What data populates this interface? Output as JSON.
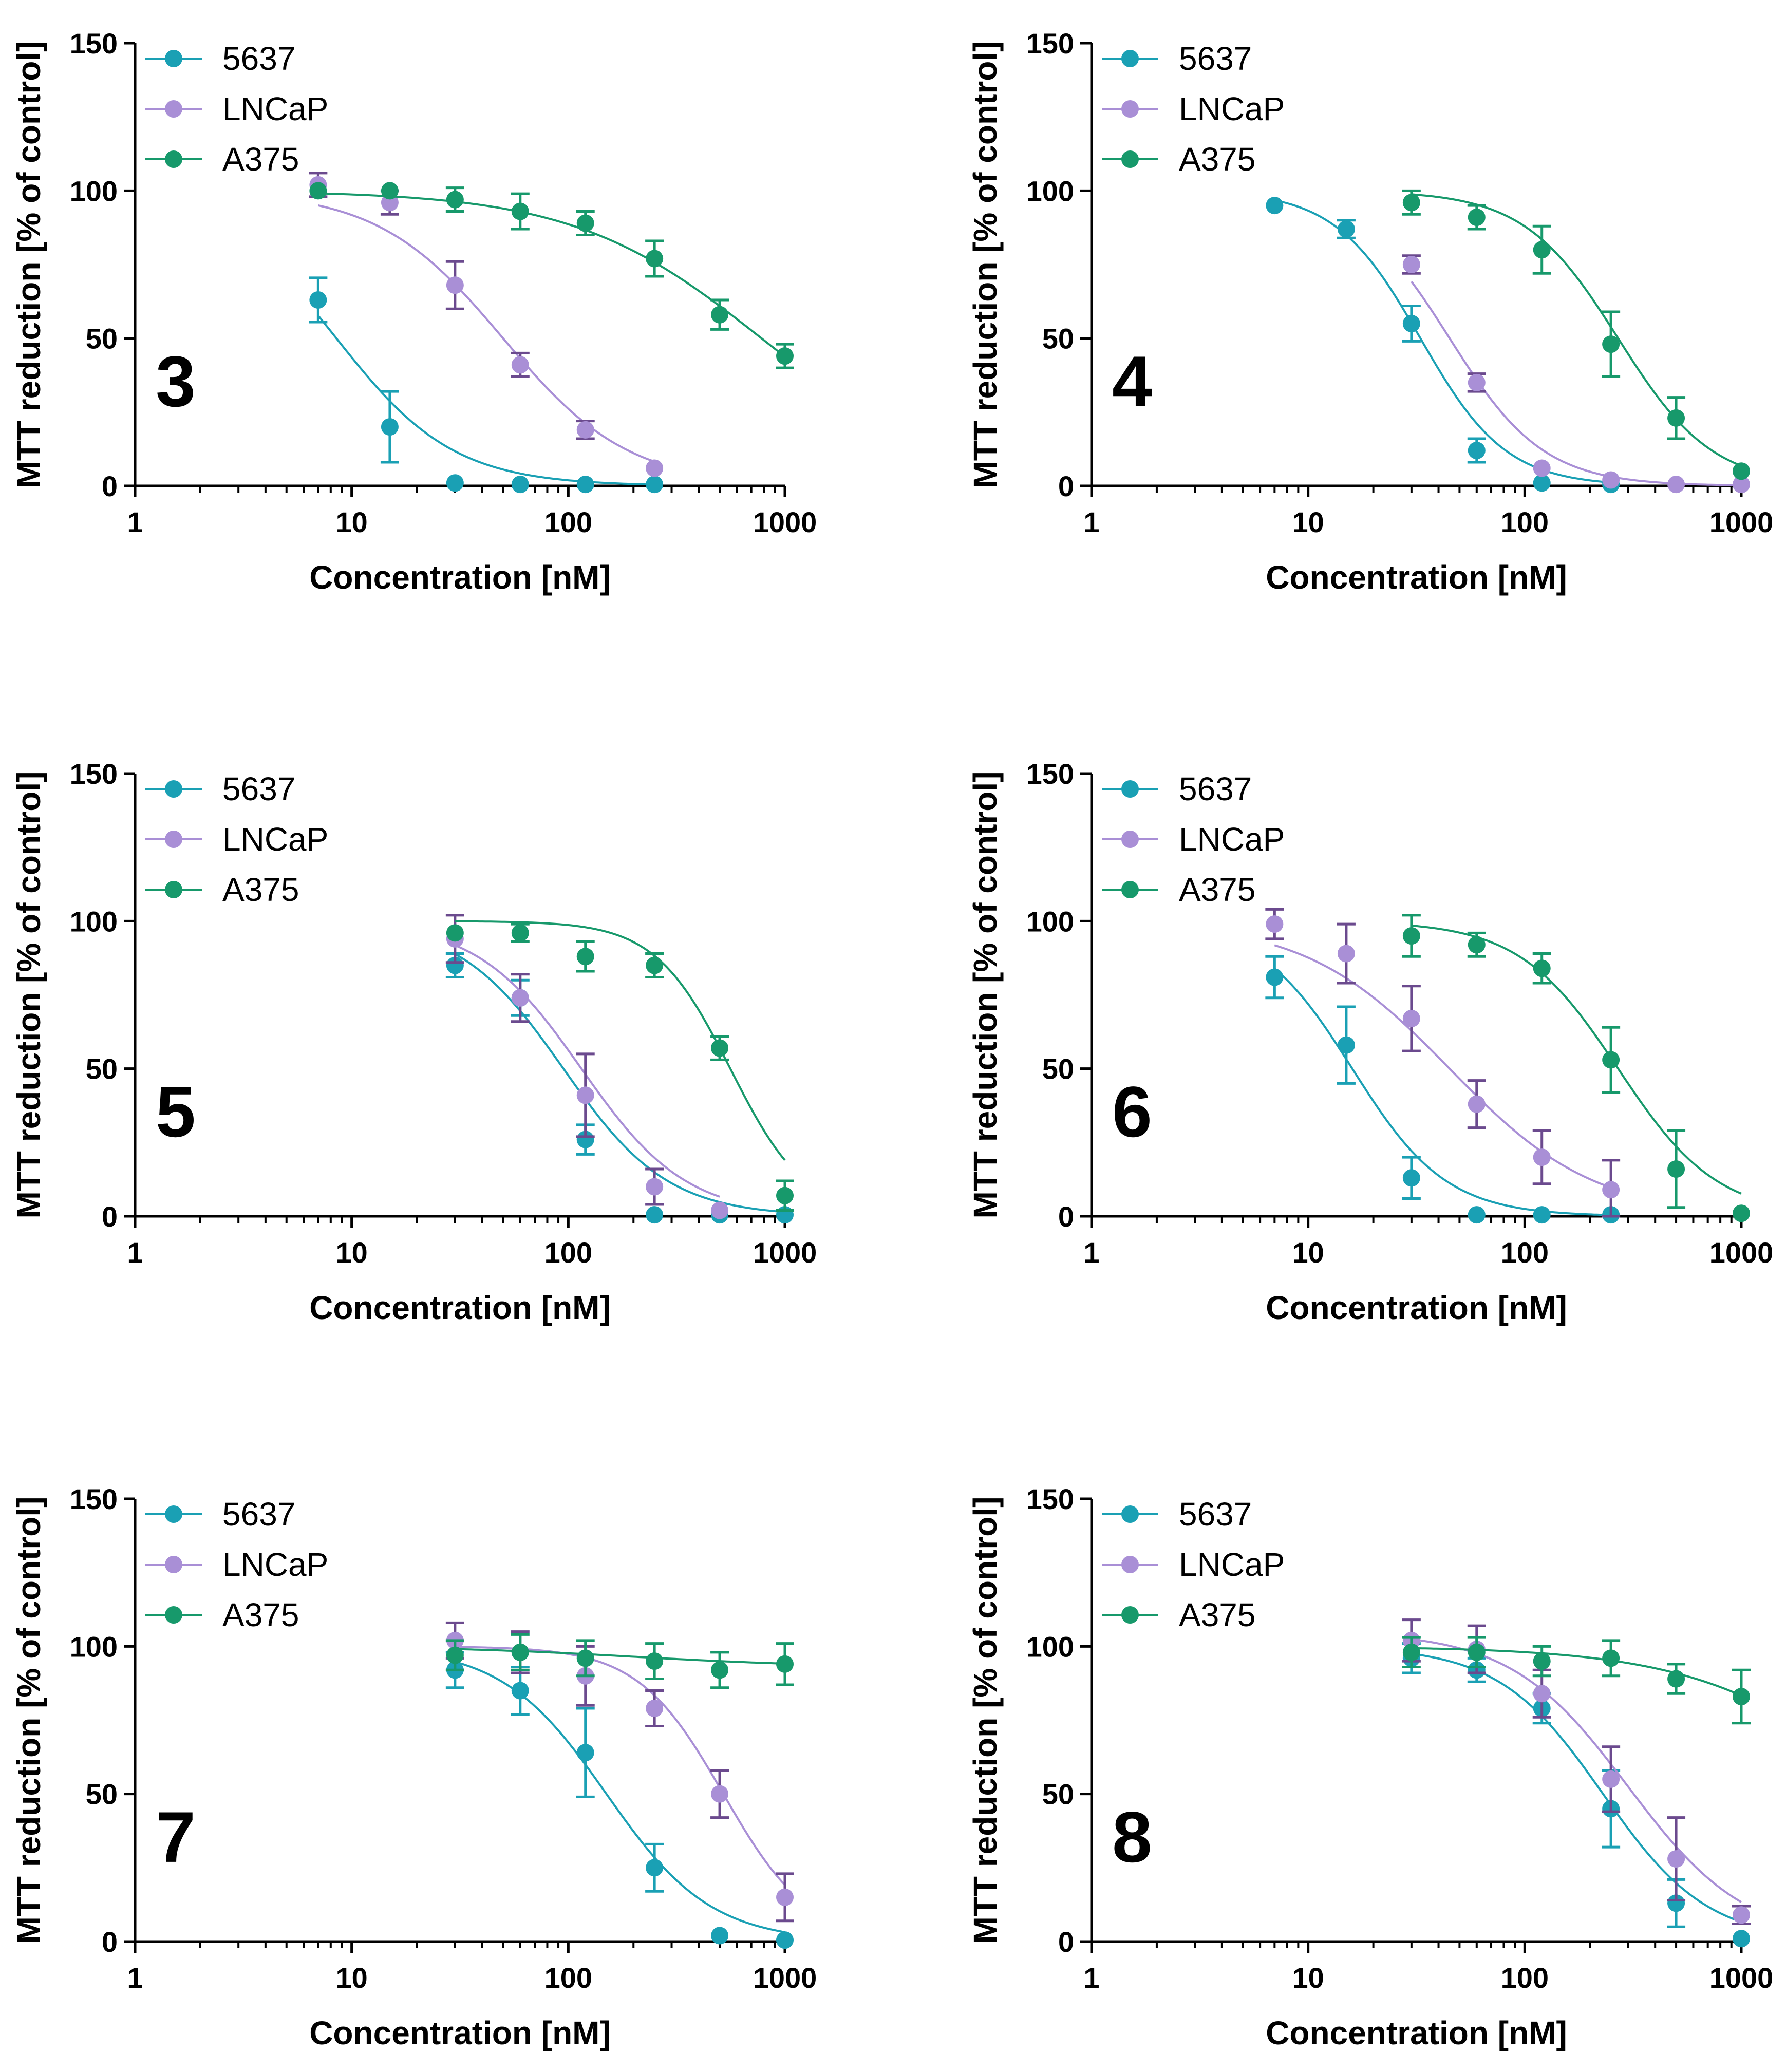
{
  "colors": {
    "5637": "#1aa0b4",
    "LNCaP": "#a98fd6",
    "LNCaP_err": "#6b4a8e",
    "A375": "#17996b"
  },
  "chart_data": [
    {
      "type": "scatter",
      "panel_label": "3",
      "xlabel": "Concentration [nM]",
      "ylabel": "MTT reduction [% of control]",
      "xscale": "log",
      "xlim": [
        1,
        1000
      ],
      "ylim": [
        0,
        150
      ],
      "xticks": [
        "1",
        "10",
        "100",
        "1000"
      ],
      "yticks": [
        "0",
        "50",
        "100",
        "150"
      ],
      "legend": [
        "5637",
        "LNCaP",
        "A375"
      ],
      "series": [
        {
          "name": "5637",
          "x": [
            7,
            15,
            30,
            60,
            120,
            250
          ],
          "y": [
            63,
            20,
            1,
            0.5,
            0.5,
            0.5
          ],
          "err": [
            7.5,
            12,
            0,
            0,
            0,
            0
          ],
          "fit": {
            "bottom": 0,
            "top": 100,
            "ic50": 8.5,
            "hill": 1.6
          }
        },
        {
          "name": "LNCaP",
          "x": [
            7,
            15,
            30,
            60,
            120,
            250
          ],
          "y": [
            102,
            96,
            68,
            41,
            19,
            6
          ],
          "err": [
            4,
            4,
            8,
            4,
            3,
            0
          ],
          "fit": {
            "bottom": 0,
            "top": 100,
            "ic50": 50,
            "hill": 1.5
          }
        },
        {
          "name": "A375",
          "x": [
            7,
            15,
            30,
            60,
            120,
            250,
            500,
            1000
          ],
          "y": [
            100,
            100,
            97,
            93,
            89,
            77,
            58,
            44
          ],
          "err": [
            0,
            0,
            4,
            6,
            4,
            6,
            5,
            4
          ],
          "fit": {
            "bottom": 0,
            "top": 100,
            "ic50": 780,
            "hill": 1
          }
        }
      ]
    },
    {
      "type": "scatter",
      "panel_label": "4",
      "xlabel": "Concentration [nM]",
      "ylabel": "MTT reduction [% of control]",
      "xscale": "log",
      "xlim": [
        1,
        1000
      ],
      "ylim": [
        0,
        150
      ],
      "xticks": [
        "1",
        "10",
        "100",
        "1000"
      ],
      "yticks": [
        "0",
        "50",
        "100",
        "150"
      ],
      "legend": [
        "5637",
        "LNCaP",
        "A375"
      ],
      "series": [
        {
          "name": "5637",
          "x": [
            7,
            15,
            30,
            60,
            120,
            250
          ],
          "y": [
            95,
            87,
            55,
            12,
            1,
            0.5
          ],
          "err": [
            0,
            3,
            6,
            4,
            0,
            0
          ],
          "fit": {
            "bottom": 0,
            "top": 100,
            "ic50": 33,
            "hill": 2.2
          }
        },
        {
          "name": "LNCaP",
          "x": [
            30,
            60,
            120,
            250,
            500,
            1000
          ],
          "y": [
            75,
            35,
            6,
            2,
            0.5,
            0.5
          ],
          "err": [
            3,
            3,
            0,
            0,
            0,
            0
          ],
          "fit": {
            "bottom": 0,
            "top": 100,
            "ic50": 45,
            "hill": 2
          }
        },
        {
          "name": "A375",
          "x": [
            30,
            60,
            120,
            250,
            500,
            1000
          ],
          "y": [
            96,
            91,
            80,
            48,
            23,
            5
          ],
          "err": [
            4,
            4,
            8,
            11,
            7,
            0
          ],
          "fit": {
            "bottom": 0,
            "top": 100,
            "ic50": 270,
            "hill": 2
          }
        }
      ]
    },
    {
      "type": "scatter",
      "panel_label": "5",
      "xlabel": "Concentration [nM]",
      "ylabel": "MTT reduction [% of control]",
      "xscale": "log",
      "xlim": [
        1,
        1000
      ],
      "ylim": [
        0,
        150
      ],
      "xticks": [
        "1",
        "10",
        "100",
        "1000"
      ],
      "yticks": [
        "0",
        "50",
        "100",
        "150"
      ],
      "legend": [
        "5637",
        "LNCaP",
        "A375"
      ],
      "series": [
        {
          "name": "5637",
          "x": [
            30,
            60,
            120,
            250,
            500,
            1000
          ],
          "y": [
            85,
            74,
            26,
            0.5,
            0.5,
            0.5
          ],
          "err": [
            4,
            6,
            5,
            0,
            0,
            0
          ],
          "fit": {
            "bottom": 0,
            "top": 100,
            "ic50": 95,
            "hill": 1.8
          }
        },
        {
          "name": "LNCaP",
          "x": [
            30,
            60,
            120,
            250,
            500
          ],
          "y": [
            94,
            74,
            41,
            10,
            2
          ],
          "err": [
            8,
            8,
            14,
            6,
            0
          ],
          "fit": {
            "bottom": 0,
            "top": 100,
            "ic50": 115,
            "hill": 1.8
          }
        },
        {
          "name": "A375",
          "x": [
            30,
            60,
            120,
            250,
            500,
            1000
          ],
          "y": [
            96,
            96,
            88,
            85,
            57,
            7
          ],
          "err": [
            0,
            3,
            5,
            4,
            4,
            5
          ],
          "fit": {
            "bottom": 0,
            "top": 100,
            "ic50": 560,
            "hill": 2.5
          }
        }
      ]
    },
    {
      "type": "scatter",
      "panel_label": "6",
      "xlabel": "Concentration [nM]",
      "ylabel": "MTT reduction [% of control]",
      "xscale": "log",
      "xlim": [
        1,
        1000
      ],
      "ylim": [
        0,
        150
      ],
      "xticks": [
        "1",
        "10",
        "100",
        "1000"
      ],
      "yticks": [
        "0",
        "50",
        "100",
        "150"
      ],
      "legend": [
        "5637",
        "LNCaP",
        "A375"
      ],
      "series": [
        {
          "name": "5637",
          "x": [
            7,
            15,
            30,
            60,
            120,
            250
          ],
          "y": [
            81,
            58,
            13,
            0.5,
            0.5,
            0.5
          ],
          "err": [
            7,
            13,
            7,
            0,
            0,
            0
          ],
          "fit": {
            "bottom": 0,
            "top": 100,
            "ic50": 16,
            "hill": 2
          }
        },
        {
          "name": "LNCaP",
          "x": [
            7,
            15,
            30,
            60,
            120,
            250
          ],
          "y": [
            99,
            89,
            67,
            38,
            20,
            9
          ],
          "err": [
            5,
            10,
            11,
            8,
            9,
            10
          ],
          "fit": {
            "bottom": 0,
            "top": 100,
            "ic50": 45,
            "hill": 1.3
          }
        },
        {
          "name": "A375",
          "x": [
            30,
            60,
            120,
            250,
            500,
            1000
          ],
          "y": [
            95,
            92,
            84,
            53,
            16,
            1
          ],
          "err": [
            7,
            4,
            5,
            11,
            13,
            0
          ],
          "fit": {
            "bottom": 0,
            "top": 100,
            "ic50": 270,
            "hill": 1.9
          }
        }
      ]
    },
    {
      "type": "scatter",
      "panel_label": "7",
      "xlabel": "Concentration [nM]",
      "ylabel": "MTT reduction [% of control]",
      "xscale": "log",
      "xlim": [
        1,
        1000
      ],
      "ylim": [
        0,
        150
      ],
      "xticks": [
        "1",
        "10",
        "100",
        "1000"
      ],
      "yticks": [
        "0",
        "50",
        "100",
        "150"
      ],
      "legend": [
        "5637",
        "LNCaP",
        "A375"
      ],
      "series": [
        {
          "name": "5637",
          "x": [
            30,
            60,
            120,
            250,
            500,
            1000
          ],
          "y": [
            92,
            85,
            64,
            25,
            2,
            0.5
          ],
          "err": [
            6,
            8,
            15,
            8,
            0,
            0
          ],
          "fit": {
            "bottom": 0,
            "top": 100,
            "ic50": 150,
            "hill": 1.8
          }
        },
        {
          "name": "LNCaP",
          "x": [
            30,
            60,
            120,
            250,
            500,
            1000
          ],
          "y": [
            102,
            98,
            90,
            79,
            50,
            15
          ],
          "err": [
            6,
            7,
            10,
            6,
            8,
            8
          ],
          "fit": {
            "bottom": 0,
            "top": 100,
            "ic50": 520,
            "hill": 2.2
          }
        },
        {
          "name": "A375",
          "x": [
            30,
            60,
            120,
            250,
            500,
            1000
          ],
          "y": [
            97,
            98,
            96,
            95,
            92,
            94
          ],
          "err": [
            5,
            6,
            6,
            6,
            6,
            7
          ],
          "fit": {
            "bottom": 93,
            "top": 100,
            "ic50": 200,
            "hill": 1
          }
        }
      ]
    },
    {
      "type": "scatter",
      "panel_label": "8",
      "xlabel": "Concentration [nM]",
      "ylabel": "MTT reduction [% of control]",
      "xscale": "log",
      "xlim": [
        1,
        1000
      ],
      "ylim": [
        0,
        150
      ],
      "xticks": [
        "1",
        "10",
        "100",
        "1000"
      ],
      "yticks": [
        "0",
        "50",
        "100",
        "150"
      ],
      "legend": [
        "5637",
        "LNCaP",
        "A375"
      ],
      "series": [
        {
          "name": "5637",
          "x": [
            30,
            60,
            120,
            250,
            500,
            1000
          ],
          "y": [
            96,
            92,
            79,
            45,
            13,
            1
          ],
          "err": [
            5,
            4,
            5,
            13,
            8,
            0
          ],
          "fit": {
            "bottom": 0,
            "top": 100,
            "ic50": 230,
            "hill": 1.8
          }
        },
        {
          "name": "LNCaP",
          "x": [
            30,
            60,
            120,
            250,
            500,
            1000
          ],
          "y": [
            102,
            99,
            84,
            55,
            28,
            9
          ],
          "err": [
            7,
            8,
            8,
            11,
            14,
            3
          ],
          "fit": {
            "bottom": 0,
            "top": 105,
            "ic50": 300,
            "hill": 1.6
          }
        },
        {
          "name": "A375",
          "x": [
            30,
            60,
            120,
            250,
            500,
            1000
          ],
          "y": [
            98,
            98,
            95,
            96,
            89,
            83
          ],
          "err": [
            5,
            5,
            5,
            6,
            5,
            9
          ],
          "fit": {
            "bottom": 0,
            "top": 100,
            "ic50": 5000,
            "hill": 1
          }
        }
      ]
    }
  ]
}
